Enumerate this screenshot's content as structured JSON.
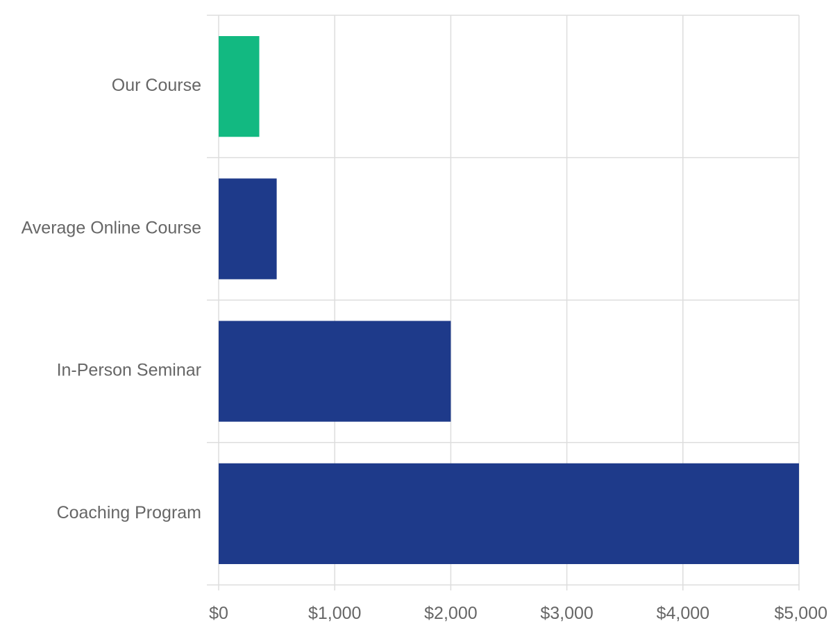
{
  "chart_data": {
    "type": "bar",
    "orientation": "horizontal",
    "categories": [
      "Our Course",
      "Average Online Course",
      "In-Person Seminar",
      "Coaching Program"
    ],
    "values": [
      350,
      500,
      2000,
      5000
    ],
    "highlight_category": "Our Course",
    "xlim": [
      0,
      5000
    ],
    "x_ticks": [
      0,
      1000,
      2000,
      3000,
      4000,
      5000
    ],
    "x_tick_labels": [
      "$0",
      "$1,000",
      "$2,000",
      "$3,000",
      "$4,000",
      "$5,000"
    ],
    "grid": true,
    "legend": "none",
    "title": "",
    "xlabel": "",
    "ylabel": ""
  },
  "colors": {
    "highlight": "#12b981",
    "default": "#1e3a8a",
    "grid": "#dddddd",
    "text": "#666666"
  }
}
